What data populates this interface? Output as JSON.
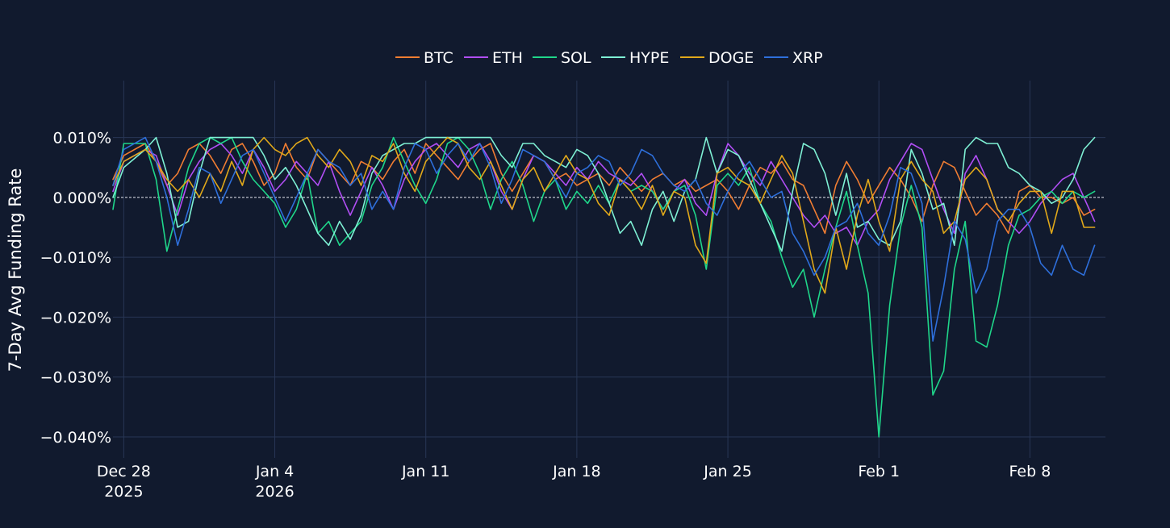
{
  "chart_data": {
    "type": "line",
    "title": "",
    "ylabel": "7-Day Avg Funding Rate",
    "xlabel": "",
    "ylim": [
      -0.0435,
      0.0195
    ],
    "y_ticks": [
      {
        "value": 0.01,
        "label": "0.010%"
      },
      {
        "value": 0.0,
        "label": "0.000%"
      },
      {
        "value": -0.01,
        "label": "−0.010%"
      },
      {
        "value": -0.02,
        "label": "−0.020%"
      },
      {
        "value": -0.03,
        "label": "−0.030%"
      },
      {
        "value": -0.04,
        "label": "−0.040%"
      }
    ],
    "x_range_days": [
      -0.5,
      45.5
    ],
    "x_ticks": [
      {
        "day": 0,
        "label": "Dec 28",
        "sublabel": "2025"
      },
      {
        "day": 7,
        "label": "Jan 4",
        "sublabel": "2026"
      },
      {
        "day": 14,
        "label": "Jan 11",
        "sublabel": ""
      },
      {
        "day": 21,
        "label": "Jan 18",
        "sublabel": ""
      },
      {
        "day": 28,
        "label": "Jan 25",
        "sublabel": ""
      },
      {
        "day": 35,
        "label": "Feb 1",
        "sublabel": ""
      },
      {
        "day": 42,
        "label": "Feb 8",
        "sublabel": ""
      }
    ],
    "x_unit": "days since Dec 28 2025",
    "zero_line": true,
    "legend_position": "top-center",
    "series": [
      {
        "name": "BTC",
        "color": "#f07d32",
        "x": [
          -0.5,
          0,
          1,
          1.5,
          2,
          2.5,
          3,
          3.5,
          4,
          4.5,
          5,
          5.5,
          6,
          6.5,
          7,
          7.5,
          8,
          8.5,
          9,
          9.5,
          10,
          10.5,
          11,
          11.5,
          12,
          12.5,
          13,
          13.5,
          14,
          14.5,
          15,
          15.5,
          16,
          16.5,
          17,
          17.5,
          18,
          18.5,
          19,
          19.5,
          20,
          20.5,
          21,
          21.5,
          22,
          22.5,
          23,
          23.5,
          24,
          24.5,
          25,
          25.5,
          26,
          26.5,
          27,
          27.5,
          28,
          28.5,
          29,
          29.5,
          30,
          30.5,
          31,
          31.5,
          32,
          32.5,
          33,
          33.5,
          34,
          34.5,
          35,
          35.5,
          36,
          36.5,
          37,
          37.5,
          38,
          38.5,
          39,
          39.5,
          40,
          40.5,
          41,
          41.5,
          42,
          42.5,
          43,
          43.5,
          44,
          44.5,
          45
        ],
        "y": [
          0.003,
          0.007,
          0.009,
          0.006,
          0.002,
          0.004,
          0.008,
          0.009,
          0.007,
          0.004,
          0.008,
          0.009,
          0.006,
          0.002,
          0.004,
          0.009,
          0.005,
          0.003,
          0.008,
          0.006,
          0.004,
          0.002,
          0.006,
          0.005,
          0.003,
          0.006,
          0.008,
          0.004,
          0.009,
          0.007,
          0.005,
          0.003,
          0.006,
          0.008,
          0.009,
          0.004,
          0.001,
          0.004,
          0.007,
          0.006,
          0.003,
          0.004,
          0.002,
          0.003,
          0.004,
          0.002,
          0.005,
          0.003,
          0.001,
          0.003,
          0.004,
          0.002,
          0.003,
          0.001,
          0.002,
          0.003,
          0.001,
          -0.002,
          0.002,
          0.005,
          0.004,
          0.006,
          0.003,
          0.002,
          -0.002,
          -0.006,
          0.002,
          0.006,
          0.003,
          -0.001,
          0.002,
          0.005,
          0.003,
          0.0,
          -0.004,
          0.002,
          0.006,
          0.005,
          0.001,
          -0.003,
          -0.001,
          -0.003,
          -0.006,
          0.001,
          0.002,
          0.0,
          0.0,
          -0.001,
          0.0,
          -0.003,
          -0.002
        ]
      },
      {
        "name": "ETH",
        "color": "#b14ef5",
        "x": [
          -0.5,
          0,
          1,
          1.5,
          2,
          2.5,
          3,
          3.5,
          4,
          4.5,
          5,
          5.5,
          6,
          6.5,
          7,
          7.5,
          8,
          8.5,
          9,
          9.5,
          10,
          10.5,
          11,
          11.5,
          12,
          12.5,
          13,
          13.5,
          14,
          14.5,
          15,
          15.5,
          16,
          16.5,
          17,
          17.5,
          18,
          18.5,
          19,
          19.5,
          20,
          20.5,
          21,
          21.5,
          22,
          22.5,
          23,
          23.5,
          24,
          24.5,
          25,
          25.5,
          26,
          26.5,
          27,
          27.5,
          28,
          28.5,
          29,
          29.5,
          30,
          30.5,
          31,
          31.5,
          32,
          32.5,
          33,
          33.5,
          34,
          34.5,
          35,
          35.5,
          36,
          36.5,
          37,
          37.5,
          38,
          38.5,
          39,
          39.5,
          40,
          40.5,
          41,
          41.5,
          42,
          42.5,
          43,
          43.5,
          44,
          44.5,
          45
        ],
        "y": [
          0.001,
          0.006,
          0.008,
          0.007,
          0.002,
          -0.003,
          0.003,
          0.006,
          0.008,
          0.009,
          0.007,
          0.004,
          0.008,
          0.005,
          0.001,
          0.003,
          0.006,
          0.004,
          0.002,
          0.006,
          0.001,
          -0.003,
          0.001,
          0.005,
          0.002,
          -0.002,
          0.003,
          0.006,
          0.008,
          0.009,
          0.007,
          0.005,
          0.008,
          0.009,
          0.006,
          0.001,
          -0.002,
          0.003,
          0.007,
          0.006,
          0.004,
          0.002,
          0.005,
          0.003,
          0.006,
          0.004,
          0.003,
          0.002,
          0.004,
          0.001,
          -0.002,
          0.001,
          0.003,
          -0.001,
          -0.003,
          0.004,
          0.009,
          0.007,
          0.004,
          0.002,
          0.006,
          0.003,
          0.0,
          -0.003,
          -0.005,
          -0.003,
          -0.006,
          -0.005,
          -0.008,
          -0.004,
          -0.002,
          0.003,
          0.006,
          0.009,
          0.008,
          0.003,
          -0.002,
          -0.006,
          0.004,
          0.007,
          0.003,
          -0.002,
          -0.004,
          -0.006,
          -0.004,
          -0.001,
          0.001,
          0.003,
          0.004,
          0.0,
          -0.004
        ]
      },
      {
        "name": "SOL",
        "color": "#1fd68a",
        "x": [
          -0.5,
          0,
          1,
          1.5,
          2,
          2.5,
          3,
          3.5,
          4,
          4.5,
          5,
          5.5,
          6,
          6.5,
          7,
          7.5,
          8,
          8.5,
          9,
          9.5,
          10,
          10.5,
          11,
          11.5,
          12,
          12.5,
          13,
          13.5,
          14,
          14.5,
          15,
          15.5,
          16,
          16.5,
          17,
          17.5,
          18,
          18.5,
          19,
          19.5,
          20,
          20.5,
          21,
          21.5,
          22,
          22.5,
          23,
          23.5,
          24,
          24.5,
          25,
          25.5,
          26,
          26.5,
          27,
          27.5,
          28,
          28.5,
          29,
          29.5,
          30,
          30.5,
          31,
          31.5,
          32,
          32.5,
          33,
          33.5,
          34,
          34.5,
          35,
          35.5,
          36,
          36.5,
          37,
          37.5,
          38,
          38.5,
          39,
          39.5,
          40,
          40.5,
          41,
          41.5,
          42,
          42.5,
          43,
          43.5,
          44,
          44.5,
          45
        ],
        "y": [
          -0.002,
          0.009,
          0.009,
          0.003,
          -0.009,
          -0.002,
          0.005,
          0.009,
          0.01,
          0.009,
          0.01,
          0.006,
          0.003,
          0.001,
          -0.001,
          -0.005,
          -0.002,
          0.004,
          -0.006,
          -0.004,
          -0.008,
          -0.006,
          -0.004,
          0.002,
          0.005,
          0.01,
          0.006,
          0.002,
          -0.001,
          0.003,
          0.009,
          0.01,
          0.008,
          0.004,
          -0.002,
          0.003,
          0.006,
          0.002,
          -0.004,
          0.001,
          0.003,
          -0.002,
          0.001,
          -0.001,
          0.002,
          -0.001,
          0.003,
          0.001,
          0.002,
          0.001,
          -0.002,
          0.001,
          0.002,
          -0.003,
          -0.012,
          0.002,
          0.004,
          0.002,
          0.005,
          -0.001,
          -0.004,
          -0.01,
          -0.015,
          -0.012,
          -0.02,
          -0.012,
          -0.005,
          0.001,
          -0.008,
          -0.016,
          -0.04,
          -0.018,
          -0.005,
          0.002,
          -0.005,
          -0.033,
          -0.029,
          -0.012,
          -0.004,
          -0.024,
          -0.025,
          -0.018,
          -0.008,
          -0.003,
          -0.002,
          0.0,
          0.001,
          -0.001,
          0.001,
          0.0,
          0.001
        ]
      },
      {
        "name": "HYPE",
        "color": "#7ef0d4",
        "x": [
          -0.5,
          0,
          1,
          1.5,
          2,
          2.5,
          3,
          3.5,
          4,
          4.5,
          5,
          5.5,
          6,
          6.5,
          7,
          7.5,
          8,
          8.5,
          9,
          9.5,
          10,
          10.5,
          11,
          11.5,
          12,
          12.5,
          13,
          13.5,
          14,
          14.5,
          15,
          15.5,
          16,
          16.5,
          17,
          17.5,
          18,
          18.5,
          19,
          19.5,
          20,
          20.5,
          21,
          21.5,
          22,
          22.5,
          23,
          23.5,
          24,
          24.5,
          25,
          25.5,
          26,
          26.5,
          27,
          27.5,
          28,
          28.5,
          29,
          29.5,
          30,
          30.5,
          31,
          31.5,
          32,
          32.5,
          33,
          33.5,
          34,
          34.5,
          35,
          35.5,
          36,
          36.5,
          37,
          37.5,
          38,
          38.5,
          39,
          39.5,
          40,
          40.5,
          41,
          41.5,
          42,
          42.5,
          43,
          43.5,
          44,
          44.5,
          45
        ],
        "y": [
          0.0,
          0.005,
          0.008,
          0.01,
          0.004,
          -0.005,
          -0.004,
          0.004,
          0.01,
          0.01,
          0.01,
          0.01,
          0.01,
          0.007,
          0.003,
          0.005,
          0.002,
          -0.002,
          -0.006,
          -0.008,
          -0.004,
          -0.007,
          -0.003,
          0.004,
          0.007,
          0.008,
          0.009,
          0.009,
          0.01,
          0.01,
          0.01,
          0.01,
          0.01,
          0.01,
          0.01,
          0.007,
          0.005,
          0.009,
          0.009,
          0.007,
          0.006,
          0.005,
          0.008,
          0.007,
          0.004,
          -0.001,
          -0.006,
          -0.004,
          -0.008,
          -0.002,
          0.001,
          -0.004,
          0.001,
          0.003,
          0.01,
          0.004,
          0.008,
          0.007,
          0.003,
          -0.001,
          -0.005,
          -0.009,
          0.001,
          0.009,
          0.008,
          0.004,
          -0.003,
          0.004,
          -0.005,
          -0.004,
          -0.007,
          -0.008,
          -0.004,
          0.008,
          0.004,
          -0.002,
          -0.001,
          -0.008,
          0.008,
          0.01,
          0.009,
          0.009,
          0.005,
          0.004,
          0.002,
          0.001,
          -0.001,
          0.0,
          0.003,
          0.008,
          0.01
        ]
      },
      {
        "name": "DOGE",
        "color": "#e0a81a",
        "x": [
          -0.5,
          0,
          1,
          1.5,
          2,
          2.5,
          3,
          3.5,
          4,
          4.5,
          5,
          5.5,
          6,
          6.5,
          7,
          7.5,
          8,
          8.5,
          9,
          9.5,
          10,
          10.5,
          11,
          11.5,
          12,
          12.5,
          13,
          13.5,
          14,
          14.5,
          15,
          15.5,
          16,
          16.5,
          17,
          17.5,
          18,
          18.5,
          19,
          19.5,
          20,
          20.5,
          21,
          21.5,
          22,
          22.5,
          23,
          23.5,
          24,
          24.5,
          25,
          25.5,
          26,
          26.5,
          27,
          27.5,
          28,
          28.5,
          29,
          29.5,
          30,
          30.5,
          31,
          31.5,
          32,
          32.5,
          33,
          33.5,
          34,
          34.5,
          35,
          35.5,
          36,
          36.5,
          37,
          37.5,
          38,
          38.5,
          39,
          39.5,
          40,
          40.5,
          41,
          41.5,
          42,
          42.5,
          43,
          43.5,
          44,
          44.5,
          45
        ],
        "y": [
          0.002,
          0.006,
          0.008,
          0.006,
          0.003,
          0.001,
          0.003,
          0.0,
          0.004,
          0.001,
          0.006,
          0.002,
          0.008,
          0.01,
          0.008,
          0.007,
          0.009,
          0.01,
          0.007,
          0.005,
          0.008,
          0.006,
          0.002,
          0.007,
          0.006,
          0.009,
          0.004,
          0.001,
          0.006,
          0.008,
          0.01,
          0.009,
          0.005,
          0.003,
          0.006,
          0.002,
          -0.002,
          0.003,
          0.005,
          0.001,
          0.004,
          0.007,
          0.004,
          0.003,
          -0.001,
          -0.003,
          0.003,
          0.001,
          -0.002,
          0.002,
          -0.003,
          0.001,
          0.0,
          -0.008,
          -0.011,
          0.004,
          0.005,
          0.003,
          0.002,
          -0.001,
          0.003,
          0.007,
          0.004,
          -0.004,
          -0.012,
          -0.016,
          -0.005,
          -0.012,
          -0.003,
          0.003,
          -0.004,
          -0.009,
          0.003,
          0.006,
          0.003,
          0.001,
          -0.006,
          -0.004,
          0.003,
          0.005,
          0.003,
          -0.002,
          -0.004,
          -0.001,
          0.001,
          0.001,
          -0.006,
          0.001,
          0.001,
          -0.005,
          -0.005
        ]
      },
      {
        "name": "XRP",
        "color": "#2e6fdb",
        "x": [
          -0.5,
          0,
          1,
          1.5,
          2,
          2.5,
          3,
          3.5,
          4,
          4.5,
          5,
          5.5,
          6,
          6.5,
          7,
          7.5,
          8,
          8.5,
          9,
          9.5,
          10,
          10.5,
          11,
          11.5,
          12,
          12.5,
          13,
          13.5,
          14,
          14.5,
          15,
          15.5,
          16,
          16.5,
          17,
          17.5,
          18,
          18.5,
          19,
          19.5,
          20,
          20.5,
          21,
          21.5,
          22,
          22.5,
          23,
          23.5,
          24,
          24.5,
          25,
          25.5,
          26,
          26.5,
          27,
          27.5,
          28,
          28.5,
          29,
          29.5,
          30,
          30.5,
          31,
          31.5,
          32,
          32.5,
          33,
          33.5,
          34,
          34.5,
          35,
          35.5,
          36,
          36.5,
          37,
          37.5,
          38,
          38.5,
          39,
          39.5,
          40,
          40.5,
          41,
          41.5,
          42,
          42.5,
          43,
          43.5,
          44,
          44.5,
          45
        ],
        "y": [
          0.002,
          0.008,
          0.01,
          0.006,
          0.0,
          -0.008,
          -0.002,
          0.005,
          0.004,
          -0.001,
          0.003,
          0.007,
          0.008,
          0.004,
          0.0,
          -0.004,
          0.0,
          0.004,
          0.008,
          0.006,
          0.005,
          0.002,
          0.004,
          -0.002,
          0.001,
          -0.002,
          0.005,
          0.009,
          0.008,
          0.004,
          0.007,
          0.009,
          0.006,
          0.009,
          0.005,
          -0.001,
          0.003,
          0.008,
          0.007,
          0.006,
          0.003,
          0.0,
          0.004,
          0.005,
          0.007,
          0.006,
          0.002,
          0.004,
          0.008,
          0.007,
          0.004,
          0.002,
          0.001,
          0.003,
          -0.001,
          -0.003,
          0.001,
          0.004,
          0.006,
          0.003,
          0.0,
          0.001,
          -0.006,
          -0.009,
          -0.013,
          -0.01,
          -0.005,
          -0.004,
          -0.001,
          -0.006,
          -0.008,
          -0.003,
          0.005,
          0.004,
          -0.001,
          -0.024,
          -0.015,
          -0.004,
          -0.007,
          -0.016,
          -0.012,
          -0.004,
          -0.002,
          -0.002,
          -0.005,
          -0.011,
          -0.013,
          -0.008,
          -0.012,
          -0.013,
          -0.008
        ]
      }
    ]
  }
}
